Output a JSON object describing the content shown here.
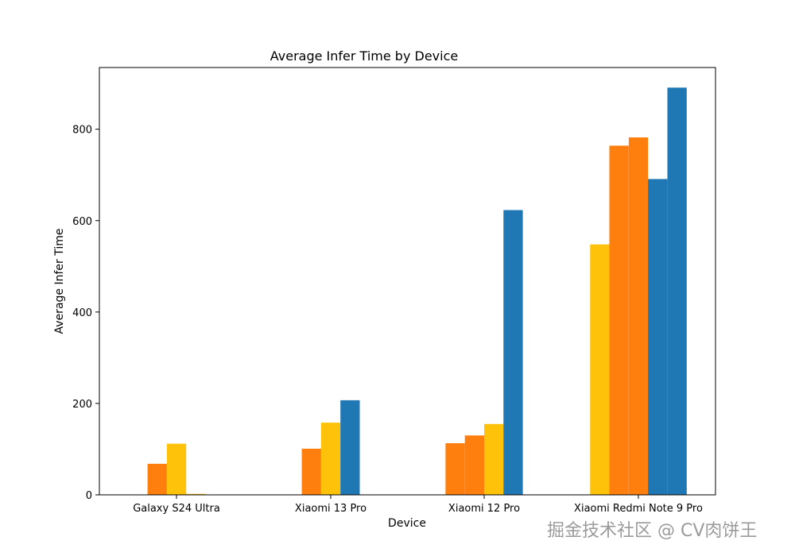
{
  "chart_data": {
    "type": "bar",
    "title": "Average Infer Time by Device",
    "xlabel": "Device",
    "ylabel": "Average Infer Time",
    "ylim": [
      0,
      935
    ],
    "yticks": [
      0,
      200,
      400,
      600,
      800
    ],
    "grid": false,
    "legend": "none",
    "categories": [
      "Galaxy S24 Ultra",
      "Xiaomi 13 Pro",
      "Xiaomi 12 Pro",
      "Xiaomi Redmi Note 9 Pro"
    ],
    "groups": [
      {
        "category": "Galaxy S24 Ultra",
        "bars": [
          {
            "value": 68,
            "color": "#ff7f0e"
          },
          {
            "value": 112,
            "color": "#ffc20a"
          },
          {
            "value": 2,
            "color": "#ffc20a"
          }
        ]
      },
      {
        "category": "Xiaomi 13 Pro",
        "bars": [
          {
            "value": 101,
            "color": "#ff7f0e"
          },
          {
            "value": 158,
            "color": "#ffc20a"
          },
          {
            "value": 207,
            "color": "#1f77b4"
          }
        ]
      },
      {
        "category": "Xiaomi 12 Pro",
        "bars": [
          {
            "value": 113,
            "color": "#ff7f0e"
          },
          {
            "value": 130,
            "color": "#ff7f0e"
          },
          {
            "value": 155,
            "color": "#ffc20a"
          },
          {
            "value": 623,
            "color": "#1f77b4"
          }
        ]
      },
      {
        "category": "Xiaomi Redmi Note 9 Pro",
        "bars": [
          {
            "value": 548,
            "color": "#ffc20a"
          },
          {
            "value": 764,
            "color": "#ff7f0e"
          },
          {
            "value": 782,
            "color": "#ff7f0e"
          },
          {
            "value": 691,
            "color": "#1f77b4"
          },
          {
            "value": 891,
            "color": "#1f77b4"
          }
        ]
      }
    ]
  },
  "watermark": "掘金技术社区 @ CV肉饼王"
}
